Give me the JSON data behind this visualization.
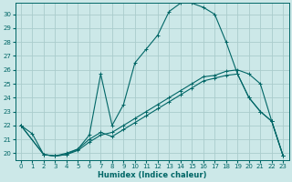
{
  "xlabel": "Humidex (Indice chaleur)",
  "ylabel": "",
  "bg_color": "#cce8e8",
  "line_color": "#006666",
  "grid_color": "#aacccc",
  "xlim": [
    -0.5,
    23.5
  ],
  "ylim": [
    19.5,
    30.8
  ],
  "xticks": [
    0,
    1,
    2,
    3,
    4,
    5,
    6,
    7,
    8,
    9,
    10,
    11,
    12,
    13,
    14,
    15,
    16,
    17,
    18,
    19,
    20,
    21,
    22,
    23
  ],
  "yticks": [
    20,
    21,
    22,
    23,
    24,
    25,
    26,
    27,
    28,
    29,
    30
  ],
  "line1_x": [
    0,
    1,
    2,
    3,
    4,
    5,
    6,
    7,
    8,
    9,
    10,
    11,
    12,
    13,
    14,
    15,
    16,
    17,
    18,
    19,
    20,
    21,
    22,
    23
  ],
  "line1_y": [
    22,
    21.4,
    19.9,
    19.8,
    19.9,
    20.3,
    21.3,
    25.7,
    22.0,
    23.5,
    26.5,
    27.5,
    28.5,
    30.2,
    30.8,
    30.8,
    30.5,
    30.0,
    28.0,
    25.7,
    24.0,
    23.0,
    22.3,
    19.8
  ],
  "line2_x": [
    0,
    2,
    3,
    4,
    5,
    6,
    7,
    8,
    9,
    10,
    11,
    12,
    13,
    14,
    15,
    16,
    17,
    18,
    19,
    20,
    21,
    22,
    23
  ],
  "line2_y": [
    22,
    19.9,
    19.8,
    19.9,
    20.2,
    20.8,
    21.3,
    21.5,
    22.0,
    22.5,
    23.0,
    23.5,
    24.0,
    24.5,
    25.0,
    25.5,
    25.6,
    25.9,
    26.0,
    25.7,
    25.0,
    22.3,
    19.8
  ],
  "line3_x": [
    0,
    2,
    3,
    4,
    5,
    6,
    7,
    8,
    9,
    10,
    11,
    12,
    13,
    14,
    15,
    16,
    17,
    18,
    19,
    20,
    21,
    22,
    23
  ],
  "line3_y": [
    22,
    19.9,
    19.8,
    20.0,
    20.3,
    21.0,
    21.5,
    21.2,
    21.7,
    22.2,
    22.7,
    23.2,
    23.7,
    24.2,
    24.7,
    25.2,
    25.4,
    25.6,
    25.7,
    24.0,
    23.0,
    22.3,
    19.8
  ]
}
